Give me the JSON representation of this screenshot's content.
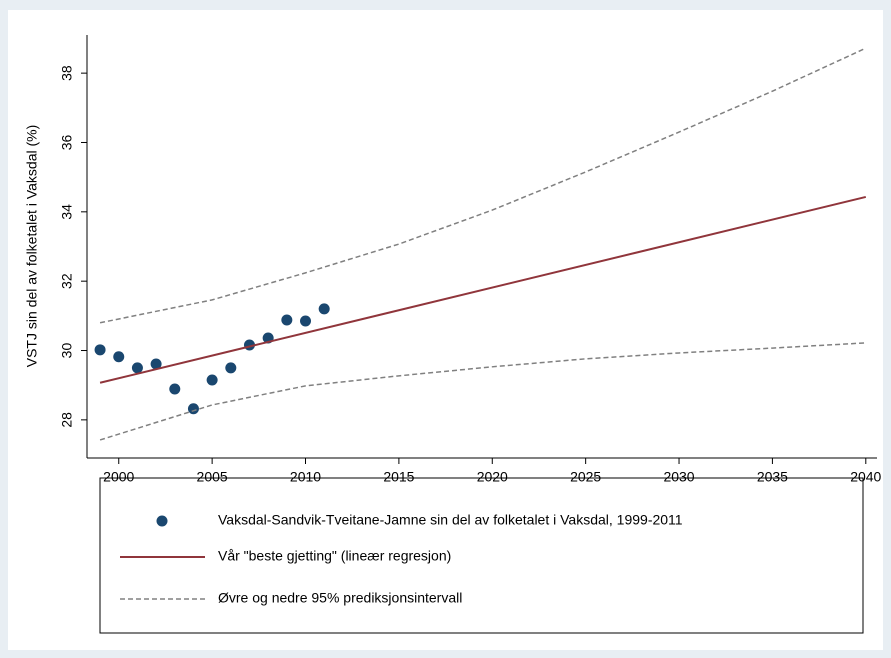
{
  "chart_data": {
    "type": "line",
    "ylabel": "VSTJ sin del av folketalet i Vaksdal (%)",
    "xlim": [
      1998.3,
      2040.6
    ],
    "xticks": [
      2000,
      2005,
      2010,
      2015,
      2020,
      2025,
      2030,
      2035,
      2040
    ],
    "ylim": [
      26.9,
      39.1
    ],
    "yticks": [
      28,
      30,
      32,
      34,
      36,
      38
    ],
    "grid": false,
    "series": [
      {
        "name": "Vaksdal-Sandvik-Tveitane-Jamne sin del av folketalet i Vaksdal, 1999-2011",
        "color": "#1a476f",
        "style": "markers",
        "x": [
          1999,
          2000,
          2001,
          2002,
          2003,
          2004,
          2005,
          2006,
          2007,
          2008,
          2009,
          2010,
          2011
        ],
        "values": [
          30.02,
          29.82,
          29.5,
          29.61,
          28.89,
          28.32,
          29.15,
          29.5,
          30.16,
          30.36,
          30.88,
          30.85,
          31.2
        ]
      },
      {
        "name": "Vår \"beste gjetting\" (lineær regresjon)",
        "color": "#90353b",
        "style": "solid",
        "x": [
          1999,
          2040
        ],
        "values": [
          29.07,
          34.43
        ]
      },
      {
        "name": "Øvre og nedre 95% prediksjonsintervall",
        "color": "#808080",
        "style": "dashed",
        "x": [
          1999,
          2005,
          2010,
          2015,
          2020,
          2025,
          2030,
          2035,
          2040
        ],
        "values": [
          30.8,
          31.46,
          32.24,
          33.07,
          34.05,
          35.15,
          36.3,
          37.48,
          38.72
        ],
        "lower": [
          27.42,
          28.43,
          28.98,
          29.27,
          29.53,
          29.76,
          29.93,
          30.07,
          30.22
        ]
      }
    ]
  }
}
